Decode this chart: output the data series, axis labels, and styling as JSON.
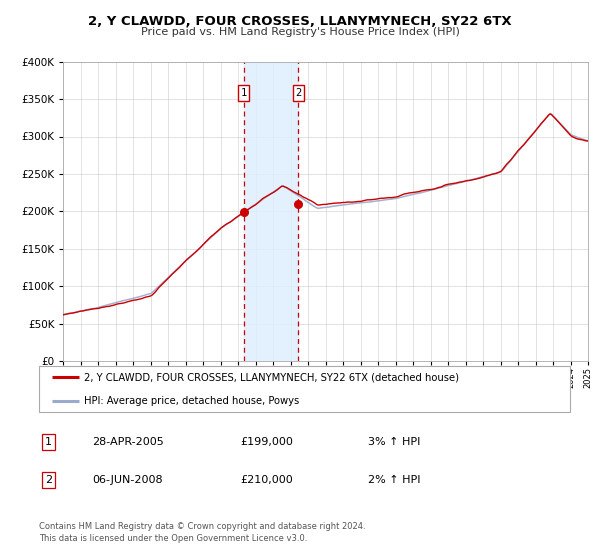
{
  "title": "2, Y CLAWDD, FOUR CROSSES, LLANYMYNECH, SY22 6TX",
  "subtitle": "Price paid vs. HM Land Registry's House Price Index (HPI)",
  "legend_line1": "2, Y CLAWDD, FOUR CROSSES, LLANYMYNECH, SY22 6TX (detached house)",
  "legend_line2": "HPI: Average price, detached house, Powys",
  "transaction1_date": "28-APR-2005",
  "transaction1_price": 199000,
  "transaction1_hpi": "3% ↑ HPI",
  "transaction2_date": "06-JUN-2008",
  "transaction2_price": 210000,
  "transaction2_hpi": "2% ↑ HPI",
  "transaction1_x": 2005.32,
  "transaction2_x": 2008.45,
  "line1_color": "#cc0000",
  "line2_color": "#99aacc",
  "dot_color": "#cc0000",
  "shade_color": "#ddeeff",
  "footer": "Contains HM Land Registry data © Crown copyright and database right 2024.\nThis data is licensed under the Open Government Licence v3.0.",
  "ylim": [
    0,
    400000
  ],
  "xlim": [
    1995,
    2025
  ],
  "yticks": [
    0,
    50000,
    100000,
    150000,
    200000,
    250000,
    300000,
    350000,
    400000
  ]
}
